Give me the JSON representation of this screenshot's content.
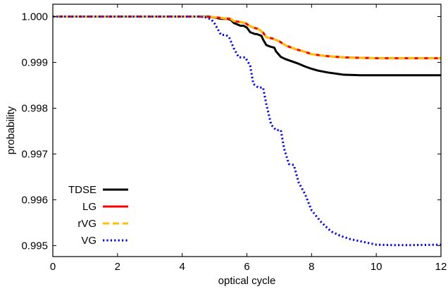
{
  "chart_data": {
    "type": "line",
    "xlabel": "optical cycle",
    "ylabel": "probability",
    "xlim": [
      0,
      12
    ],
    "ylim": [
      0.99476,
      1.00027
    ],
    "xticks": [
      "0",
      "2",
      "4",
      "6",
      "8",
      "10",
      "12"
    ],
    "yticks": [
      "0.995",
      "0.996",
      "0.997",
      "0.998",
      "0.999",
      "1.000"
    ],
    "grid": false,
    "legend_position": "lower-left",
    "series": [
      {
        "name": "TDSE",
        "color": "#000000",
        "style": "solid",
        "x": [
          0,
          4.5,
          4.8,
          5.0,
          5.2,
          5.4,
          5.5,
          5.6,
          5.8,
          5.9,
          6.0,
          6.1,
          6.25,
          6.3,
          6.45,
          6.5,
          6.6,
          6.7,
          6.85,
          6.9,
          7.05,
          7.2,
          7.4,
          7.6,
          7.8,
          8.0,
          8.2,
          8.5,
          8.8,
          9.0,
          9.5,
          10.0,
          11.0,
          12.0
        ],
        "y": [
          1.0,
          1.0,
          1.0,
          0.99998,
          0.99995,
          0.99995,
          0.99993,
          0.99986,
          0.9998,
          0.9998,
          0.99976,
          0.99966,
          0.99962,
          0.99962,
          0.99958,
          0.9995,
          0.99938,
          0.99935,
          0.99932,
          0.99924,
          0.99912,
          0.99907,
          0.99902,
          0.99897,
          0.99891,
          0.99886,
          0.99882,
          0.99878,
          0.99875,
          0.99873,
          0.99872,
          0.99872,
          0.99872,
          0.99872
        ]
      },
      {
        "name": "LG",
        "color": "#ff0000",
        "style": "solid",
        "x": [
          0,
          4.5,
          4.9,
          5.1,
          5.3,
          5.5,
          5.6,
          5.8,
          5.95,
          6.05,
          6.2,
          6.35,
          6.5,
          6.6,
          6.8,
          7.0,
          7.2,
          7.5,
          7.8,
          8.0,
          8.3,
          8.6,
          9.0,
          9.5,
          10.0,
          11.0,
          12.0
        ],
        "y": [
          1.0,
          1.0,
          0.99999,
          0.99998,
          0.99996,
          0.99995,
          0.9999,
          0.99988,
          0.99986,
          0.99981,
          0.99976,
          0.99973,
          0.99965,
          0.99955,
          0.99952,
          0.99946,
          0.99937,
          0.99929,
          0.99923,
          0.99918,
          0.99915,
          0.99913,
          0.99911,
          0.9991,
          0.99909,
          0.99909,
          0.99909
        ]
      },
      {
        "name": "rVG",
        "color": "#ffc000",
        "style": "dashed",
        "x": [
          0,
          4.5,
          4.9,
          5.1,
          5.3,
          5.5,
          5.6,
          5.8,
          5.95,
          6.05,
          6.2,
          6.35,
          6.5,
          6.6,
          6.8,
          7.0,
          7.2,
          7.5,
          7.8,
          8.0,
          8.3,
          8.6,
          9.0,
          9.5,
          10.0,
          11.0,
          12.0
        ],
        "y": [
          1.0,
          1.0,
          0.99999,
          0.99998,
          0.99996,
          0.99995,
          0.9999,
          0.99988,
          0.99986,
          0.99981,
          0.99976,
          0.99973,
          0.99965,
          0.99955,
          0.99952,
          0.99946,
          0.99937,
          0.99929,
          0.99923,
          0.99918,
          0.99915,
          0.99913,
          0.99911,
          0.9991,
          0.99909,
          0.99909,
          0.99909
        ]
      },
      {
        "name": "VG",
        "color": "#0000ff",
        "style": "dotted",
        "x": [
          0,
          4.5,
          4.7,
          4.9,
          5.0,
          5.2,
          5.35,
          5.45,
          5.6,
          5.75,
          5.95,
          6.1,
          6.2,
          6.35,
          6.5,
          6.6,
          6.75,
          6.9,
          7.05,
          7.15,
          7.3,
          7.45,
          7.6,
          7.8,
          8.0,
          8.3,
          8.6,
          8.9,
          9.2,
          9.6,
          10.0,
          10.5,
          11.0,
          12.0
        ],
        "y": [
          1.0,
          1.0,
          0.99999,
          0.99994,
          0.99985,
          0.9996,
          0.9996,
          0.99955,
          0.9993,
          0.99911,
          0.99911,
          0.99893,
          0.99853,
          0.99845,
          0.99845,
          0.99809,
          0.99764,
          0.99752,
          0.99752,
          0.99712,
          0.99678,
          0.99676,
          0.99638,
          0.99612,
          0.99577,
          0.99551,
          0.99531,
          0.99521,
          0.99514,
          0.99508,
          0.99502,
          0.99501,
          0.99501,
          0.99502
        ]
      }
    ]
  }
}
